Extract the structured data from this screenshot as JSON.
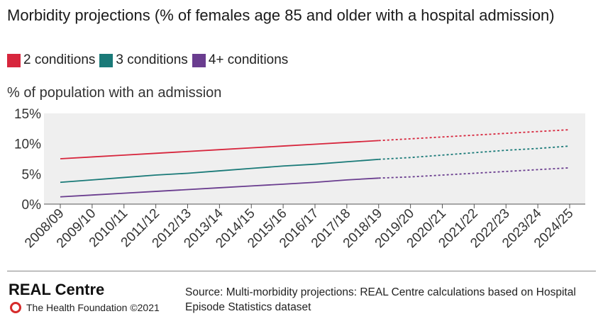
{
  "title": "Morbidity projections (% of females age 85 and older with a hospital admission)",
  "chart_data": {
    "type": "line",
    "title": "Morbidity projections (% of females age 85 and older with a hospital admission)",
    "ylabel": "% of population with an admission",
    "xlabel": "",
    "ylim": [
      0,
      15
    ],
    "yticks": [
      "0%",
      "5%",
      "10%",
      "15%"
    ],
    "ytick_values": [
      0,
      5,
      10,
      15
    ],
    "categories": [
      "2008/09",
      "2009/10",
      "2010/11",
      "2011/12",
      "2012/13",
      "2013/14",
      "2014/15",
      "2015/16",
      "2016/17",
      "2017/18",
      "2018/19",
      "2019/20",
      "2020/21",
      "2021/22",
      "2022/23",
      "2023/24",
      "2024/25"
    ],
    "projection_start_index": 10,
    "grid": false,
    "legend_position": "top-left",
    "series": [
      {
        "name": "2 conditions",
        "color": "#d7263d",
        "values": [
          7.5,
          7.8,
          8.1,
          8.4,
          8.7,
          9.0,
          9.3,
          9.6,
          9.9,
          10.2,
          10.5,
          10.8,
          11.1,
          11.4,
          11.7,
          12.0,
          12.3
        ]
      },
      {
        "name": "3 conditions",
        "color": "#1a7a78",
        "values": [
          3.6,
          4.0,
          4.4,
          4.8,
          5.1,
          5.5,
          5.9,
          6.3,
          6.6,
          7.0,
          7.4,
          7.7,
          8.1,
          8.5,
          8.9,
          9.2,
          9.6
        ]
      },
      {
        "name": "4+ conditions",
        "color": "#6a3d8f",
        "values": [
          1.2,
          1.5,
          1.8,
          2.1,
          2.4,
          2.7,
          3.0,
          3.3,
          3.6,
          4.0,
          4.3,
          4.5,
          4.8,
          5.1,
          5.4,
          5.7,
          6.0
        ]
      }
    ]
  },
  "footer": {
    "brand": "REAL Centre",
    "org": "The Health Foundation ©2021",
    "source": "Source: Multi-morbidity projections: REAL Centre calculations based on Hospital Episode Statistics dataset"
  }
}
